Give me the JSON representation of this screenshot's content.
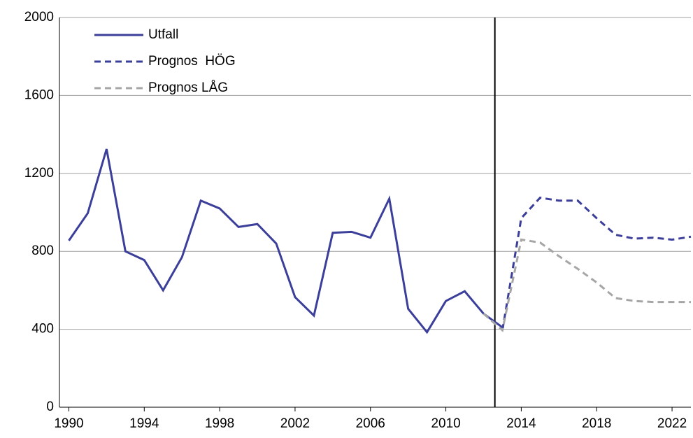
{
  "chart_data": {
    "type": "line",
    "x": [
      1990,
      1991,
      1992,
      1993,
      1994,
      1995,
      1996,
      1997,
      1998,
      1999,
      2000,
      2001,
      2002,
      2003,
      2004,
      2005,
      2006,
      2007,
      2008,
      2009,
      2010,
      2011,
      2012,
      2013,
      2014,
      2015,
      2016,
      2017,
      2018,
      2019,
      2020,
      2021,
      2022,
      2023
    ],
    "series": [
      {
        "name": "Utfall",
        "color": "#3b3f9a",
        "dash": false,
        "values": [
          855,
          995,
          1325,
          800,
          755,
          600,
          770,
          1060,
          1020,
          925,
          940,
          840,
          565,
          470,
          895,
          900,
          870,
          1070,
          505,
          385,
          545,
          595,
          480,
          410,
          null,
          null,
          null,
          null,
          null,
          null,
          null,
          null,
          null,
          null
        ]
      },
      {
        "name": "Prognos  HÖG",
        "color": "#3b3f9a",
        "dash": true,
        "values": [
          null,
          null,
          null,
          null,
          null,
          null,
          null,
          null,
          null,
          null,
          null,
          null,
          null,
          null,
          null,
          null,
          null,
          null,
          null,
          null,
          null,
          null,
          null,
          395,
          970,
          1075,
          1060,
          1060,
          970,
          885,
          865,
          870,
          860,
          875
        ]
      },
      {
        "name": "Prognos LÅG",
        "color": "#a6a6a6",
        "dash": true,
        "values": [
          null,
          null,
          null,
          null,
          null,
          null,
          null,
          null,
          null,
          null,
          null,
          null,
          null,
          null,
          null,
          null,
          null,
          null,
          null,
          null,
          null,
          null,
          480,
          395,
          860,
          845,
          775,
          710,
          640,
          560,
          545,
          540,
          540,
          540
        ]
      }
    ],
    "xlim": [
      1989.5,
      2023
    ],
    "xticks": [
      1990,
      1994,
      1998,
      2002,
      2006,
      2010,
      2014,
      2018,
      2022
    ],
    "ylim": [
      0,
      2000
    ],
    "yticks": [
      0,
      400,
      800,
      1200,
      1600,
      2000
    ],
    "grid": true,
    "vline_x": 2012.6,
    "legend": "upper-left"
  }
}
